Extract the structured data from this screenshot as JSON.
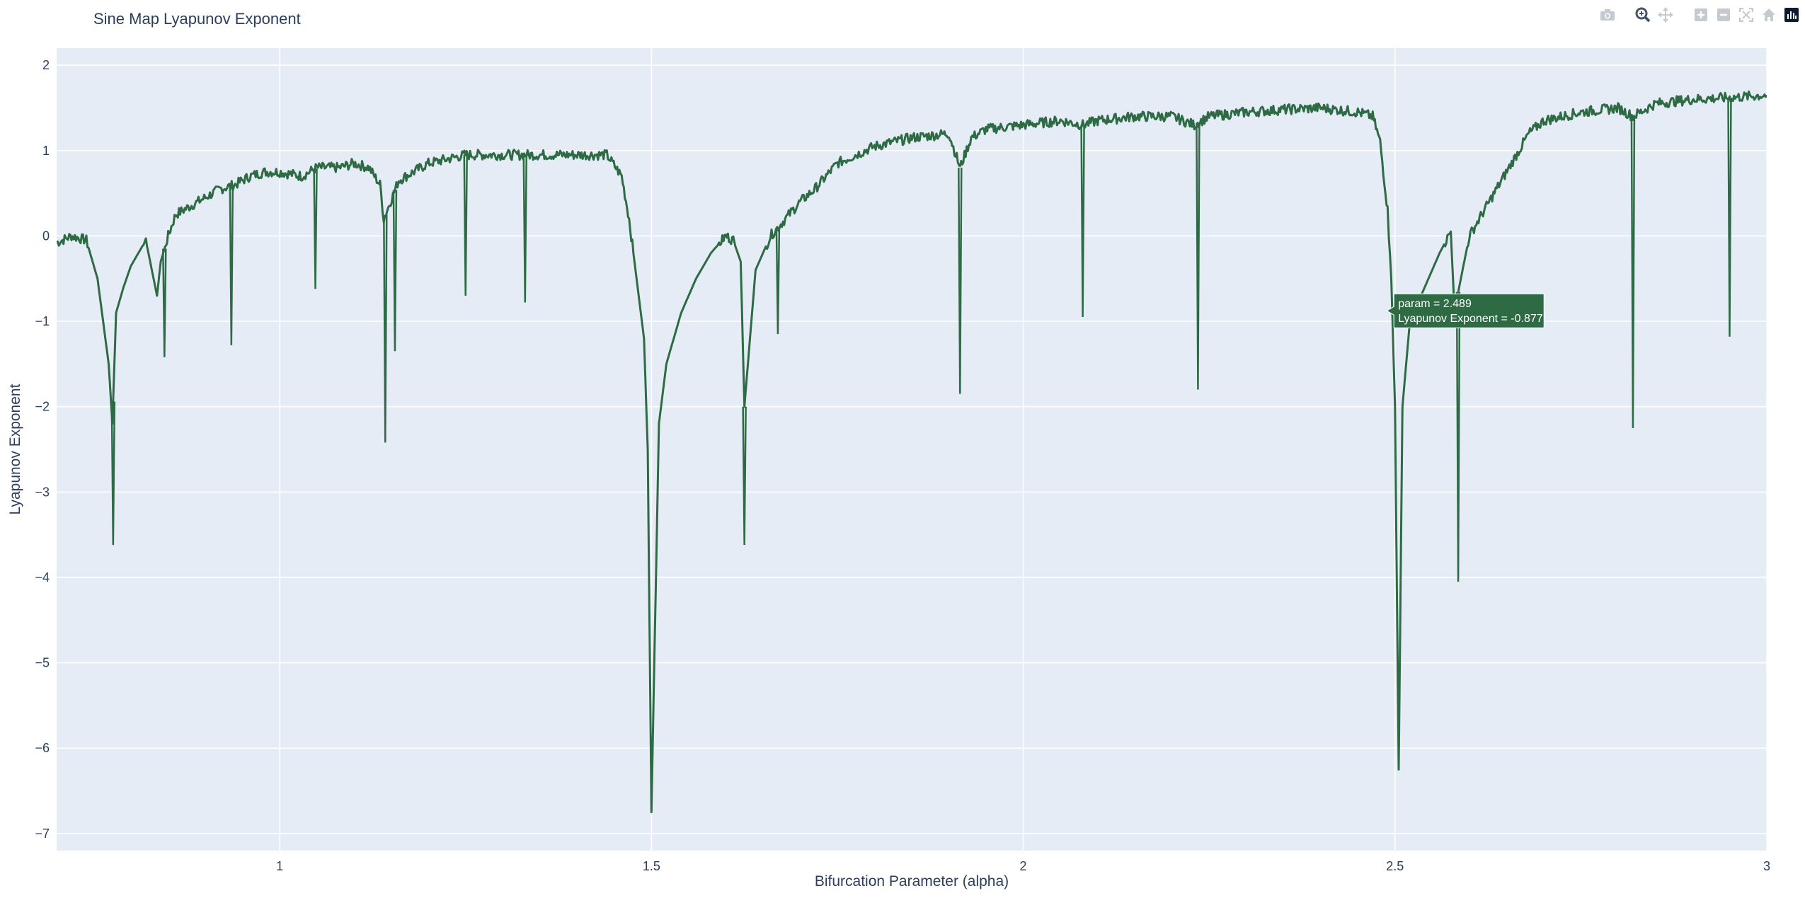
{
  "chart_data": {
    "type": "line",
    "title": "Sine Map Lyapunov Exponent",
    "xlabel": "Bifurcation Parameter (alpha)",
    "ylabel": "Lyapunov Exponent",
    "xlim": [
      0.7,
      3.0
    ],
    "ylim": [
      -7.2,
      2.2
    ],
    "x_ticks": [
      1,
      1.5,
      2,
      2.5,
      3
    ],
    "x_tick_labels": [
      "1",
      "1.5",
      "2",
      "2.5",
      "3"
    ],
    "y_ticks": [
      2,
      1,
      0,
      -1,
      -2,
      -3,
      -4,
      -5,
      -6,
      -7
    ],
    "y_tick_labels": [
      "2",
      "1",
      "0",
      "−1",
      "−2",
      "−3",
      "−4",
      "−5",
      "−6",
      "−7"
    ],
    "grid": true,
    "legend": "none",
    "line_color": "#2e6b45",
    "plot_bg": "#e5ecf6",
    "series": [
      {
        "x": [
          0.7,
          0.72,
          0.74,
          0.755,
          0.77,
          0.775,
          0.78,
          0.79,
          0.8,
          0.82,
          0.835,
          0.84,
          0.85,
          0.86,
          0.88,
          0.9,
          0.92,
          0.94,
          0.96,
          0.98,
          1.0,
          1.03,
          1.05,
          1.08,
          1.1,
          1.12,
          1.135,
          1.14,
          1.16,
          1.2,
          1.25,
          1.3,
          1.35,
          1.4,
          1.44,
          1.46,
          1.47,
          1.48,
          1.49,
          1.495,
          1.5,
          1.51,
          1.52,
          1.54,
          1.56,
          1.58,
          1.6,
          1.61,
          1.62,
          1.625,
          1.64,
          1.66,
          1.68,
          1.7,
          1.72,
          1.75,
          1.8,
          1.85,
          1.9,
          1.915,
          1.93,
          1.95,
          2.0,
          2.05,
          2.08,
          2.1,
          2.15,
          2.2,
          2.23,
          2.25,
          2.3,
          2.35,
          2.4,
          2.45,
          2.47,
          2.48,
          2.49,
          2.495,
          2.5,
          2.505,
          2.51,
          2.52,
          2.54,
          2.56,
          2.575,
          2.58,
          2.6,
          2.62,
          2.64,
          2.66,
          2.68,
          2.7,
          2.75,
          2.8,
          2.82,
          2.85,
          2.9,
          2.95,
          3.0
        ],
        "y": [
          -0.08,
          0.0,
          -0.05,
          -0.5,
          -1.5,
          -2.2,
          -0.9,
          -0.6,
          -0.35,
          -0.05,
          -0.7,
          -0.3,
          0.0,
          0.25,
          0.35,
          0.45,
          0.55,
          0.6,
          0.7,
          0.75,
          0.75,
          0.7,
          0.8,
          0.8,
          0.85,
          0.8,
          0.6,
          0.2,
          0.65,
          0.85,
          0.95,
          0.95,
          0.95,
          0.95,
          0.95,
          0.7,
          0.2,
          -0.5,
          -1.2,
          -2.5,
          -6.75,
          -2.2,
          -1.5,
          -0.9,
          -0.5,
          -0.2,
          0.0,
          -0.05,
          -0.3,
          -2.0,
          -0.4,
          0.0,
          0.2,
          0.4,
          0.55,
          0.85,
          1.05,
          1.15,
          1.2,
          0.8,
          1.15,
          1.25,
          1.3,
          1.35,
          1.3,
          1.35,
          1.4,
          1.4,
          1.3,
          1.4,
          1.45,
          1.48,
          1.5,
          1.45,
          1.4,
          1.1,
          0.3,
          -0.5,
          -2.0,
          -6.25,
          -2.0,
          -1.0,
          -0.6,
          -0.2,
          0.05,
          -0.877,
          0.0,
          0.3,
          0.6,
          0.9,
          1.2,
          1.35,
          1.45,
          1.5,
          1.4,
          1.55,
          1.6,
          1.62,
          1.65
        ]
      }
    ],
    "spikes": [
      {
        "x": 0.776,
        "y": -3.62
      },
      {
        "x": 0.845,
        "y": -1.42
      },
      {
        "x": 0.935,
        "y": -1.28
      },
      {
        "x": 1.048,
        "y": -0.62
      },
      {
        "x": 1.142,
        "y": -2.42
      },
      {
        "x": 1.155,
        "y": -1.35
      },
      {
        "x": 1.25,
        "y": -0.7
      },
      {
        "x": 1.33,
        "y": -0.78
      },
      {
        "x": 1.625,
        "y": -3.62
      },
      {
        "x": 1.67,
        "y": -1.15
      },
      {
        "x": 1.915,
        "y": -1.85
      },
      {
        "x": 2.08,
        "y": -0.95
      },
      {
        "x": 2.235,
        "y": -1.8
      },
      {
        "x": 2.585,
        "y": -4.05
      },
      {
        "x": 2.82,
        "y": -2.25
      },
      {
        "x": 2.95,
        "y": -1.18
      }
    ],
    "hover": {
      "line1": "param = 2.489",
      "line2": "Lyapunov Exponent = -0.877",
      "x": 2.489,
      "y": -0.877
    }
  },
  "modebar": {
    "icons": [
      "camera-icon",
      "zoom-icon",
      "pan-icon",
      "zoom-in-icon",
      "zoom-out-icon",
      "autoscale-icon",
      "reset-axes-icon",
      "plotly-logo-icon"
    ]
  }
}
